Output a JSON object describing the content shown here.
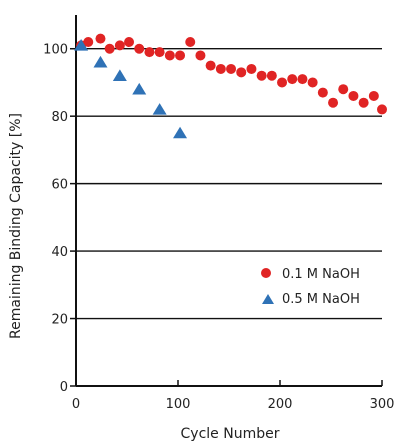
{
  "chart_data": {
    "type": "scatter",
    "xlabel": "Cycle Number",
    "ylabel": "Remaining Binding Capacity [%]",
    "xlim": [
      0,
      300
    ],
    "ylim": [
      0,
      110
    ],
    "x_ticks": [
      0,
      100,
      200,
      300
    ],
    "y_ticks": [
      0,
      20,
      40,
      60,
      80,
      100
    ],
    "grid": "horizontal",
    "legend_position": "bottom-right",
    "series": [
      {
        "name": "0.1 M NaOH",
        "marker": "circle",
        "color": "#e02424",
        "x": [
          5,
          12,
          24,
          33,
          43,
          52,
          62,
          72,
          82,
          92,
          102,
          112,
          122,
          132,
          142,
          152,
          162,
          172,
          182,
          192,
          202,
          212,
          222,
          232,
          242,
          252,
          262,
          272,
          282,
          292,
          300
        ],
        "y": [
          101,
          102,
          103,
          100,
          101,
          102,
          100,
          99,
          99,
          98,
          98,
          102,
          98,
          95,
          94,
          94,
          93,
          94,
          92,
          92,
          90,
          91,
          91,
          90,
          87,
          84,
          88,
          86,
          84,
          86,
          82
        ]
      },
      {
        "name": "0.5 M NaOH",
        "marker": "triangle",
        "color": "#2f72b6",
        "x": [
          5,
          24,
          43,
          62,
          82,
          102
        ],
        "y": [
          101,
          96,
          92,
          88,
          82,
          75
        ]
      }
    ]
  }
}
